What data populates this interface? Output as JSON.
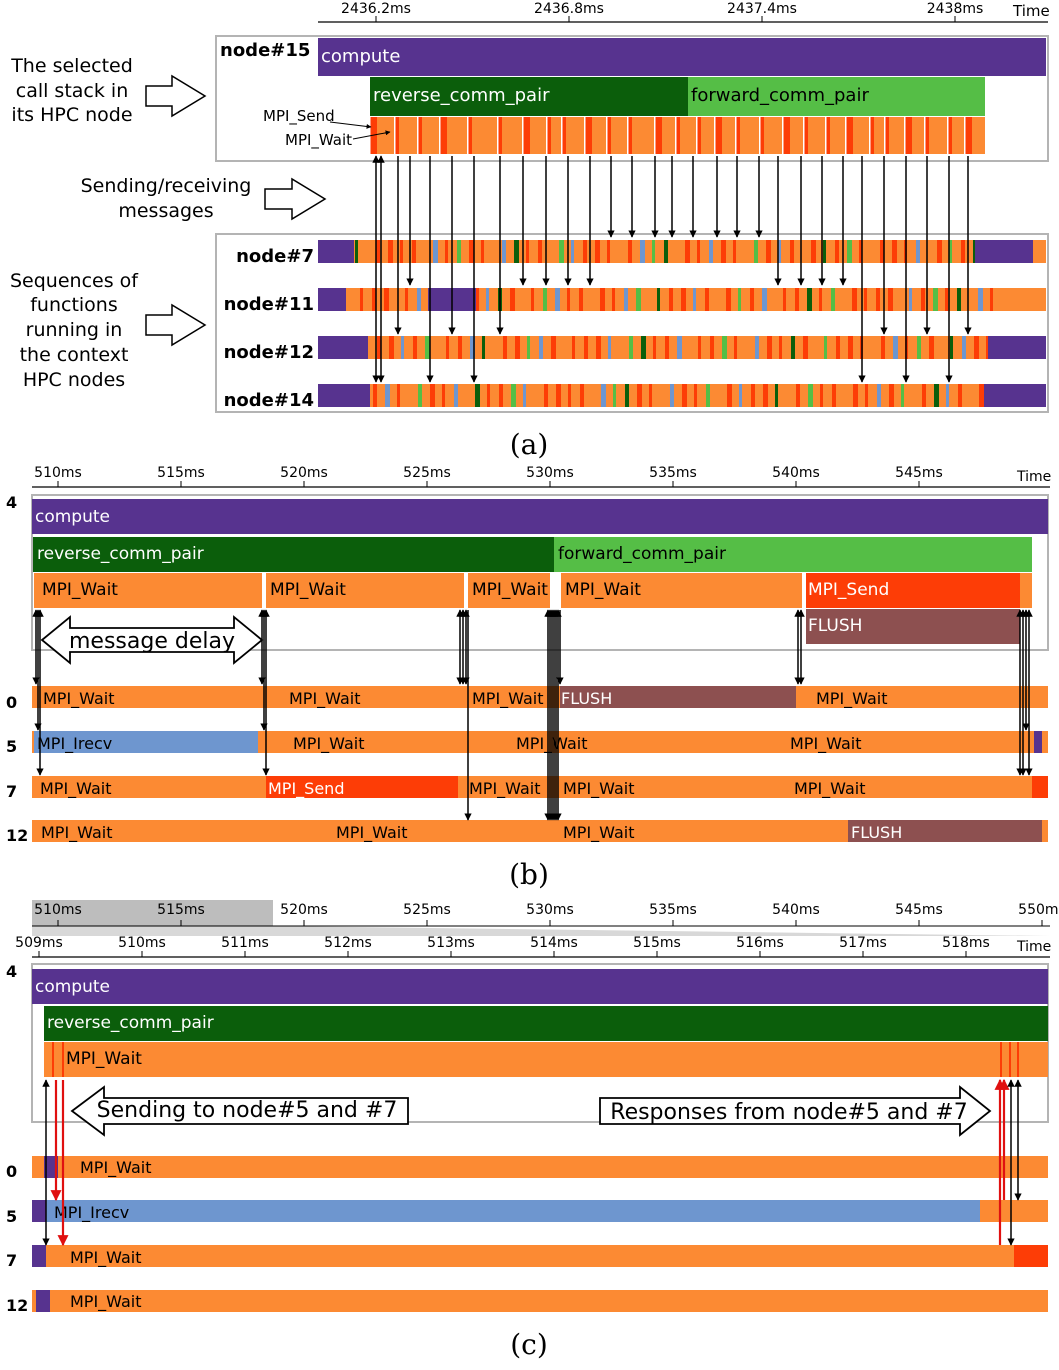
{
  "colors": {
    "compute": "#57338f",
    "reverse": "#0b5e0b",
    "forward": "#55be46",
    "wait": "#fc8a33",
    "send": "#fd3d06",
    "irecv": "#6e96cf",
    "flush": "#8d5050",
    "panel": "#b4b4b4",
    "arrow": "#000000",
    "red_arrow": "#e01010"
  },
  "a": {
    "ticks": [
      "2436.2ms",
      "2436.8ms",
      "2437.4ms",
      "2438ms"
    ],
    "time_label": "Time",
    "selected_node": "node#15",
    "bars": {
      "compute": "compute",
      "reverse": "reverse_comm_pair",
      "forward": "forward_comm_pair"
    },
    "call_labels": {
      "send": "MPI_Send",
      "wait": "MPI_Wait"
    },
    "notes": {
      "selected": [
        "The selected",
        "call stack in",
        "its HPC node"
      ],
      "messages": [
        "Sending/receiving",
        "messages"
      ],
      "sequences": [
        "Sequences of",
        "functions",
        "running in",
        "the context",
        "HPC nodes"
      ]
    },
    "nodes": [
      "node#7",
      "node#11",
      "node#12",
      "node#14"
    ],
    "caption": "(a)"
  },
  "b": {
    "ticks": [
      "510ms",
      "515ms",
      "520ms",
      "525ms",
      "530ms",
      "535ms",
      "540ms",
      "545ms"
    ],
    "time_label": "Time",
    "selected_node": "4",
    "bars": {
      "compute": "compute",
      "reverse": "reverse_comm_pair",
      "forward": "forward_comm_pair",
      "w1": "MPI_Wait",
      "w2": "MPI_Wait",
      "w3": "MPI_Wait",
      "w4": "MPI_Wait",
      "send": "MPI_Send",
      "flush": "FLUSH"
    },
    "delay_label": "message delay",
    "nodes": [
      "0",
      "5",
      "7",
      "12"
    ],
    "rows": {
      "n0": [
        "MPI_Wait",
        "MPI_Wait",
        "MPI_Wait",
        "FLUSH",
        "MPI_Wait"
      ],
      "n5": [
        "MPI_Irecv",
        "MPI_Wait",
        "MPI_Wait",
        "MPI_Wait"
      ],
      "n7": [
        "MPI_Wait",
        "MPI_Send",
        "MPI_Wait",
        "MPI_Wait",
        "MPI_Wait"
      ],
      "n12": [
        "MPI_Wait",
        "MPI_Wait",
        "MPI_Wait",
        "FLUSH"
      ]
    },
    "caption": "(b)"
  },
  "c": {
    "overview_ticks": [
      "510ms",
      "515ms",
      "520ms",
      "525ms",
      "530ms",
      "535ms",
      "540ms",
      "545ms",
      "550ms"
    ],
    "ticks": [
      "509ms",
      "510ms",
      "511ms",
      "512ms",
      "513ms",
      "514ms",
      "515ms",
      "516ms",
      "517ms",
      "518ms"
    ],
    "time_label": "Time",
    "selected_node": "4",
    "bars": {
      "compute": "compute",
      "reverse": "reverse_comm_pair",
      "wait": "MPI_Wait"
    },
    "send_label": "Sending to node#5 and #7",
    "resp_label": "Responses from node#5 and #7",
    "nodes": [
      "0",
      "5",
      "7",
      "12"
    ],
    "rows": {
      "n0": "MPI_Wait",
      "n5": "MPI_Irecv",
      "n7": "MPI_Wait",
      "n12": "MPI_Wait"
    },
    "caption": "(c)"
  }
}
